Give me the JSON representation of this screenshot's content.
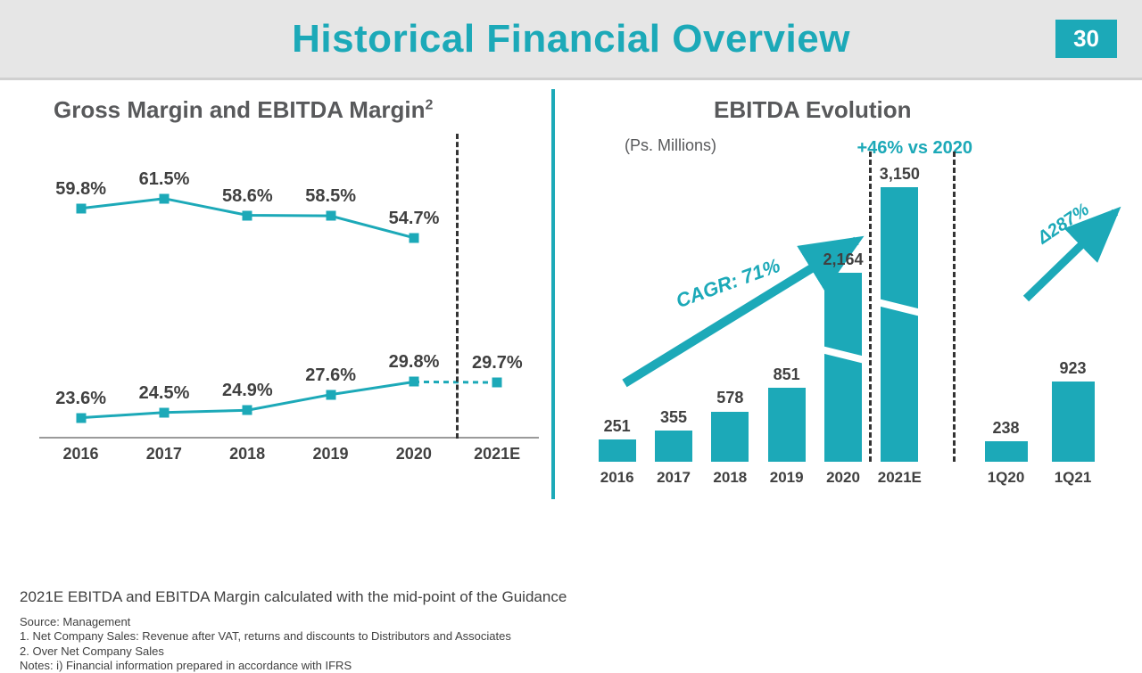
{
  "page": {
    "title": "Historical Financial Overview",
    "number": "30",
    "brand_color": "#1ca9b8",
    "header_bg": "#e6e6e6",
    "text_color": "#404040"
  },
  "margin_chart": {
    "title": "Gross Margin and EBITDA Margin",
    "title_sup": "2",
    "type": "line",
    "years": [
      "2016",
      "2017",
      "2018",
      "2019",
      "2020",
      "2021E"
    ],
    "gross_margin": [
      59.8,
      61.5,
      58.6,
      58.5,
      54.7,
      null
    ],
    "gross_margin_labels": [
      "59.8%",
      "61.5%",
      "58.6%",
      "58.5%",
      "54.7%",
      ""
    ],
    "ebitda_margin": [
      23.6,
      24.5,
      24.9,
      27.6,
      29.8,
      29.7
    ],
    "ebitda_margin_labels": [
      "23.6%",
      "24.5%",
      "24.9%",
      "27.6%",
      "29.8%",
      "29.7%"
    ],
    "ylim": [
      20,
      65
    ],
    "dash_after_col": 5,
    "line_color": "#1ca9b8",
    "marker_color": "#1ca9b8",
    "marker_style": "square",
    "marker_size": 11,
    "line_width": 3,
    "label_fontsize": 20,
    "label_fontweight": 800,
    "xlabel_fontsize": 18
  },
  "ebitda_chart": {
    "title": "EBITDA Evolution",
    "units_label": "(Ps. Millions)",
    "growth_callout": "+46% vs 2020",
    "cagr_label": "CAGR: 71%",
    "delta_label": "Δ287%",
    "type": "bar",
    "main": {
      "categories": [
        "2016",
        "2017",
        "2018",
        "2019",
        "2020",
        "2021E"
      ],
      "values": [
        251,
        355,
        578,
        851,
        2164,
        3150
      ],
      "labels": [
        "251",
        "355",
        "578",
        "851",
        "2,164",
        "3,150"
      ]
    },
    "quarter": {
      "categories": [
        "1Q20",
        "1Q21"
      ],
      "values": [
        238,
        923
      ],
      "labels": [
        "238",
        "923"
      ]
    },
    "ylim": [
      0,
      3150
    ],
    "bar_color": "#1ca9b8",
    "label_fontsize": 18,
    "label_fontweight": 800,
    "slash_color": "#ffffff"
  },
  "footnotes": {
    "guidance_note": "2021E EBITDA and EBITDA Margin calculated with the mid-point of the Guidance",
    "source": "Source: Management",
    "note1": "1. Net Company Sales: Revenue after VAT, returns and discounts to Distributors and Associates",
    "note2": "2. Over Net Company Sales",
    "note3": "Notes: i) Financial information prepared in accordance with IFRS"
  }
}
